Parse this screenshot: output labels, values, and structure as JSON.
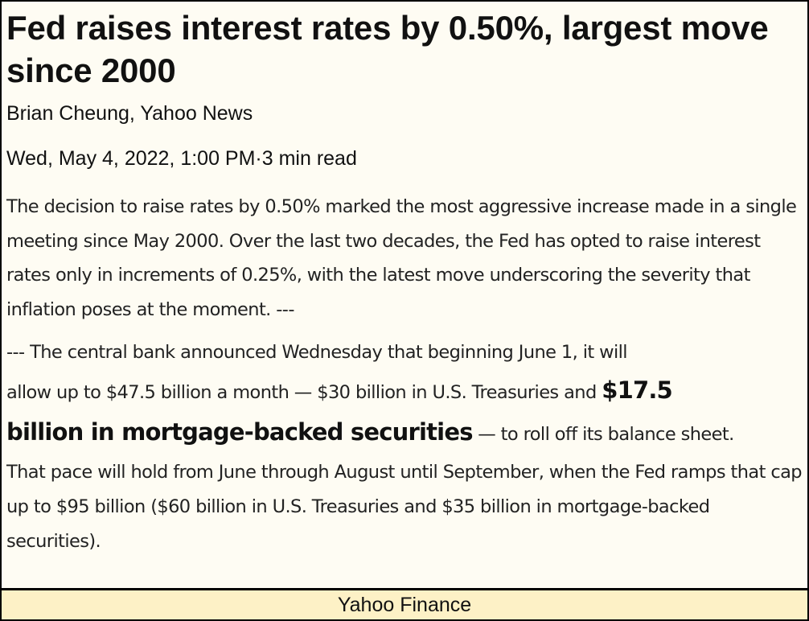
{
  "article": {
    "headline": "Fed raises interest rates by 0.50%, largest move since 2000",
    "byline": "Brian Cheung, Yahoo News",
    "dateline": "Wed, May 4, 2022, 1:00 PM·3 min read",
    "paragraph1": "The decision to raise rates by 0.50% marked the most aggressive increase made in a single meeting since May 2000. Over the last two decades, the Fed has opted to raise interest rates only in increments of 0.25%, with the latest move underscoring the severity that inflation poses at the moment. ---",
    "paragraph2": {
      "line1": "--- The central bank announced Wednesday that beginning June 1, it will",
      "line2_before": "allow up to $47.5 billion a month — $30 billion in U.S. Treasuries and ",
      "emphasis_part1": "$17.5",
      "emphasis_part2": "billion in mortgage-backed securities",
      "line3_after": " — to roll off its balance sheet.",
      "rest": "That pace will hold from June through August until September, when the Fed ramps that cap up to $95 billion ($60 billion in U.S. Treasuries and $35 billion in mortgage-backed securities)."
    }
  },
  "footer": {
    "source": "Yahoo Finance"
  }
}
